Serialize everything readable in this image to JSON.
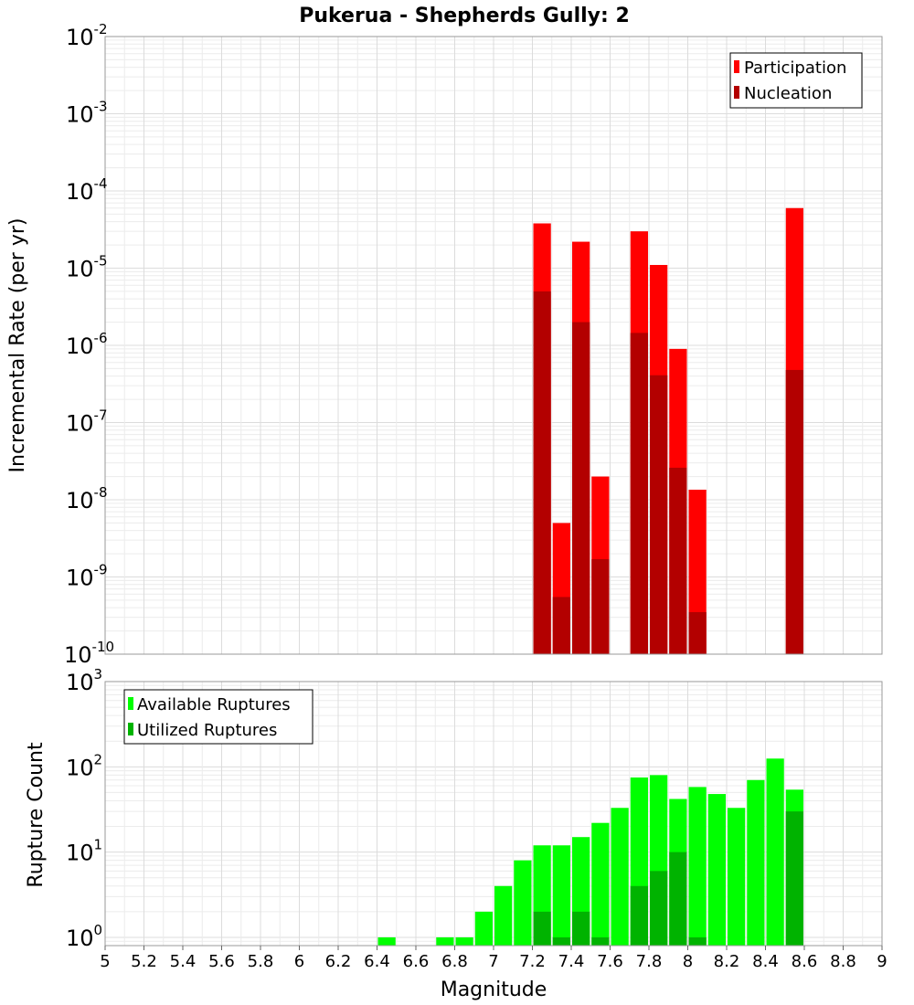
{
  "title": "Pukerua - Shepherds Gully: 2",
  "chart_data": [
    {
      "type": "bar",
      "scale": "log",
      "ylabel": "Incremental Rate (per yr)",
      "ylim": [
        1e-10,
        0.01
      ],
      "xlim": [
        5,
        9
      ],
      "bar_width": 0.1,
      "yticks": [
        {
          "base": "10",
          "exp": "-2",
          "v": 0.01
        },
        {
          "base": "10",
          "exp": "-3",
          "v": 0.001
        },
        {
          "base": "10",
          "exp": "-4",
          "v": 0.0001
        },
        {
          "base": "10",
          "exp": "-5",
          "v": 1e-05
        },
        {
          "base": "10",
          "exp": "-6",
          "v": 1e-06
        },
        {
          "base": "10",
          "exp": "-7",
          "v": 1e-07
        },
        {
          "base": "10",
          "exp": "-8",
          "v": 1e-08
        },
        {
          "base": "10",
          "exp": "-9",
          "v": 1e-09
        },
        {
          "base": "10",
          "exp": "-10",
          "v": 1e-10
        }
      ],
      "legend": {
        "position": "top-right",
        "entries": [
          "Participation",
          "Nucleation"
        ]
      },
      "series": [
        {
          "name": "Participation",
          "color": "#ff0000",
          "x": [
            7.25,
            7.35,
            7.45,
            7.55,
            7.75,
            7.85,
            7.95,
            8.05,
            8.55
          ],
          "values": [
            3.8e-05,
            5e-09,
            2.2e-05,
            2e-08,
            3e-05,
            1.1e-05,
            9e-07,
            1.35e-08,
            6e-05
          ]
        },
        {
          "name": "Nucleation",
          "color": "#b30000",
          "x": [
            7.25,
            7.35,
            7.45,
            7.55,
            7.75,
            7.85,
            7.95,
            8.05,
            8.55
          ],
          "values": [
            5e-06,
            5.5e-10,
            2e-06,
            1.7e-09,
            1.45e-06,
            4.1e-07,
            2.6e-08,
            3.5e-10,
            4.8e-07
          ]
        }
      ]
    },
    {
      "type": "bar",
      "scale": "log",
      "xlabel": "Magnitude",
      "ylabel": "Rupture Count",
      "ylim": [
        0.8,
        1000
      ],
      "xlim": [
        5,
        9
      ],
      "bar_width": 0.1,
      "xticks": [
        "5",
        "5.2",
        "5.4",
        "5.6",
        "5.8",
        "6",
        "6.2",
        "6.4",
        "6.6",
        "6.8",
        "7",
        "7.2",
        "7.4",
        "7.6",
        "7.8",
        "8",
        "8.2",
        "8.4",
        "8.6",
        "8.8",
        "9"
      ],
      "yticks": [
        {
          "base": "10",
          "exp": "3",
          "v": 1000
        },
        {
          "base": "10",
          "exp": "2",
          "v": 100
        },
        {
          "base": "10",
          "exp": "1",
          "v": 10
        },
        {
          "base": "10",
          "exp": "0",
          "v": 1
        }
      ],
      "legend": {
        "position": "top-left",
        "entries": [
          "Available Ruptures",
          "Utilized Ruptures"
        ]
      },
      "series": [
        {
          "name": "Available Ruptures",
          "color": "#00ff00",
          "x": [
            6.45,
            6.75,
            6.85,
            6.95,
            7.05,
            7.15,
            7.25,
            7.35,
            7.45,
            7.55,
            7.65,
            7.75,
            7.85,
            7.95,
            8.05,
            8.15,
            8.25,
            8.35,
            8.45,
            8.55
          ],
          "values": [
            1,
            1,
            1,
            2,
            4,
            8,
            12,
            12,
            15,
            22,
            33,
            75,
            80,
            42,
            58,
            48,
            33,
            70,
            125,
            54
          ]
        },
        {
          "name": "Utilized Ruptures",
          "color": "#00b300",
          "x": [
            7.25,
            7.35,
            7.45,
            7.55,
            7.75,
            7.85,
            7.95,
            8.05,
            8.55
          ],
          "values": [
            2,
            1,
            2,
            1,
            4,
            6,
            10,
            1,
            30
          ]
        }
      ]
    }
  ]
}
